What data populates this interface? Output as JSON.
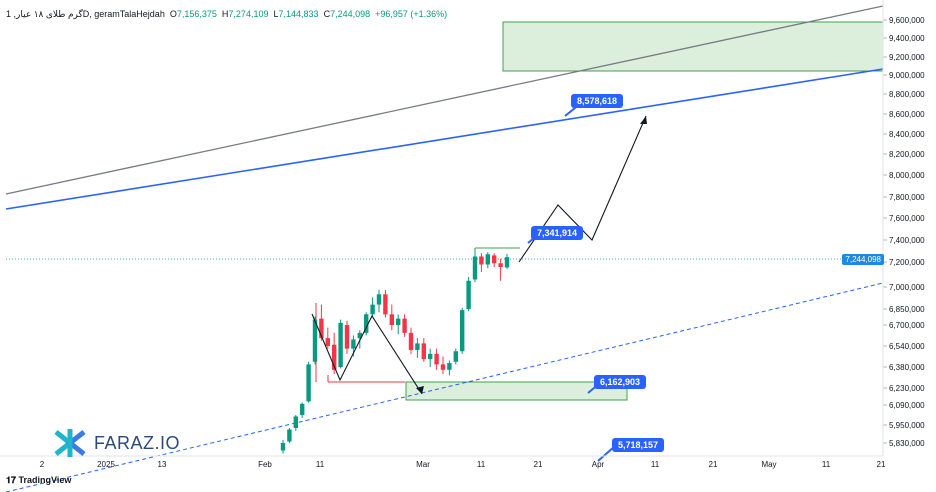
{
  "legend": {
    "symbol": "گرم طلای ۱۸ عیار, 1D, geramTalaHejdah",
    "open_label": "O",
    "open": "7,156,375",
    "high_label": "H",
    "high": "7,274,109",
    "low_label": "L",
    "low": "7,144,833",
    "close_label": "C",
    "close": "7,244,098",
    "change": "+96,957 (+1.36%)"
  },
  "branding": {
    "logo_text": "FARAZ.IO",
    "footer": "TradingView"
  },
  "callouts": {
    "target": "8,578,618",
    "resistance": "7,341,914",
    "support": "6,162,903",
    "low_target": "5,718,157"
  },
  "current_price": "7,244,098",
  "colors": {
    "up": "#089981",
    "down": "#f23645",
    "trend": "#2962ff",
    "zone": "#4caf50"
  },
  "chart_data": {
    "type": "candlestick",
    "x_ticks": [
      "2",
      "2025",
      "13",
      "Feb",
      "11",
      "Mar",
      "11",
      "21",
      "Apr",
      "11",
      "21",
      "May",
      "11",
      "21"
    ],
    "y_ticks": [
      "9,600,000",
      "9,400,000",
      "9,200,000",
      "9,000,000",
      "8,800,000",
      "8,600,000",
      "8,400,000",
      "8,200,000",
      "8,000,000",
      "7,800,000",
      "7,600,000",
      "7,400,000",
      "7,200,000",
      "7,000,000",
      "6,850,000",
      "6,700,000",
      "6,540,000",
      "6,380,000",
      "6,230,000",
      "6,090,000",
      "5,950,000",
      "5,830,000"
    ],
    "candles": [
      {
        "o": 5780000,
        "h": 5850000,
        "l": 5760000,
        "c": 5830000
      },
      {
        "o": 5840000,
        "h": 5930000,
        "l": 5830000,
        "c": 5920000
      },
      {
        "o": 5930000,
        "h": 6020000,
        "l": 5910000,
        "c": 6010000
      },
      {
        "o": 6020000,
        "h": 6110000,
        "l": 6000000,
        "c": 6100000
      },
      {
        "o": 6120000,
        "h": 6420000,
        "l": 6110000,
        "c": 6400000
      },
      {
        "o": 6420000,
        "h": 6780000,
        "l": 6400000,
        "c": 6750000
      },
      {
        "o": 6760000,
        "h": 6880000,
        "l": 6580000,
        "c": 6600000
      },
      {
        "o": 6600000,
        "h": 6680000,
        "l": 6520000,
        "c": 6540000
      },
      {
        "o": 6550000,
        "h": 6640000,
        "l": 6330000,
        "c": 6360000
      },
      {
        "o": 6380000,
        "h": 6750000,
        "l": 6370000,
        "c": 6720000
      },
      {
        "o": 6700000,
        "h": 6740000,
        "l": 6480000,
        "c": 6520000
      },
      {
        "o": 6520000,
        "h": 6620000,
        "l": 6460000,
        "c": 6590000
      },
      {
        "o": 6600000,
        "h": 6660000,
        "l": 6520000,
        "c": 6640000
      },
      {
        "o": 6640000,
        "h": 6820000,
        "l": 6620000,
        "c": 6800000
      },
      {
        "o": 6800000,
        "h": 6930000,
        "l": 6780000,
        "c": 6880000
      },
      {
        "o": 6880000,
        "h": 6980000,
        "l": 6820000,
        "c": 6950000
      },
      {
        "o": 6950000,
        "h": 6980000,
        "l": 6770000,
        "c": 6800000
      },
      {
        "o": 6800000,
        "h": 6880000,
        "l": 6660000,
        "c": 6700000
      },
      {
        "o": 6700000,
        "h": 6800000,
        "l": 6630000,
        "c": 6760000
      },
      {
        "o": 6760000,
        "h": 6800000,
        "l": 6610000,
        "c": 6640000
      },
      {
        "o": 6640000,
        "h": 6680000,
        "l": 6480000,
        "c": 6510000
      },
      {
        "o": 6510000,
        "h": 6600000,
        "l": 6450000,
        "c": 6560000
      },
      {
        "o": 6560000,
        "h": 6600000,
        "l": 6420000,
        "c": 6440000
      },
      {
        "o": 6440000,
        "h": 6520000,
        "l": 6380000,
        "c": 6480000
      },
      {
        "o": 6480000,
        "h": 6520000,
        "l": 6360000,
        "c": 6400000
      },
      {
        "o": 6400000,
        "h": 6460000,
        "l": 6330000,
        "c": 6360000
      },
      {
        "o": 6360000,
        "h": 6430000,
        "l": 6320000,
        "c": 6410000
      },
      {
        "o": 6420000,
        "h": 6520000,
        "l": 6400000,
        "c": 6500000
      },
      {
        "o": 6500000,
        "h": 6860000,
        "l": 6480000,
        "c": 6840000
      },
      {
        "o": 6850000,
        "h": 7080000,
        "l": 6830000,
        "c": 7050000
      },
      {
        "o": 7060000,
        "h": 7320000,
        "l": 7040000,
        "c": 7250000
      },
      {
        "o": 7250000,
        "h": 7280000,
        "l": 7120000,
        "c": 7180000
      },
      {
        "o": 7180000,
        "h": 7290000,
        "l": 7150000,
        "c": 7270000
      },
      {
        "o": 7260000,
        "h": 7280000,
        "l": 7160000,
        "c": 7190000
      },
      {
        "o": 7190000,
        "h": 7230000,
        "l": 7050000,
        "c": 7160000
      },
      {
        "o": 7156375,
        "h": 7274109,
        "l": 7144833,
        "c": 7244098
      }
    ]
  }
}
